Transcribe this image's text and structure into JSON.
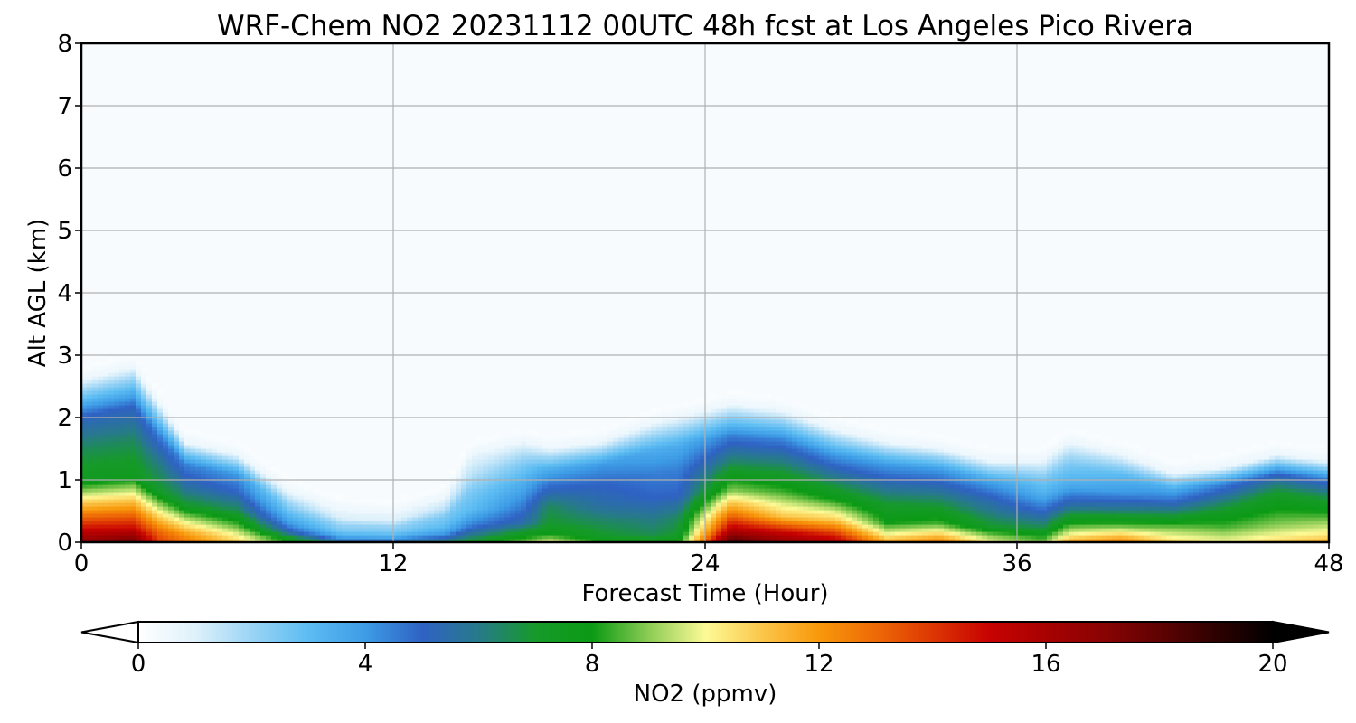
{
  "chart_data": {
    "type": "heatmap",
    "title": "WRF-Chem NO2  20231112 00UTC 48h fcst at Los Angeles Pico Rivera",
    "xlabel": "Forecast Time (Hour)",
    "ylabel": "Alt AGL (km)",
    "xlim": [
      0,
      48
    ],
    "ylim": [
      0,
      8
    ],
    "x_ticks": [
      0,
      12,
      24,
      36,
      48
    ],
    "y_ticks": [
      0,
      1,
      2,
      3,
      4,
      5,
      6,
      7,
      8
    ],
    "grid": true,
    "colorbar": {
      "label": "NO2  (ppmv)",
      "range": [
        0,
        20
      ],
      "ticks": [
        0,
        4,
        8,
        12,
        16,
        20
      ],
      "extend": "both",
      "orientation": "horizontal",
      "stops": [
        {
          "v": 0,
          "c": "#ffffff"
        },
        {
          "v": 1,
          "c": "#dff1fb"
        },
        {
          "v": 2,
          "c": "#9ad4f5"
        },
        {
          "v": 3,
          "c": "#5cbcf2"
        },
        {
          "v": 4,
          "c": "#3d9ce6"
        },
        {
          "v": 5,
          "c": "#2f62c4"
        },
        {
          "v": 6,
          "c": "#277a8a"
        },
        {
          "v": 7,
          "c": "#169a2a"
        },
        {
          "v": 8,
          "c": "#0b9a14"
        },
        {
          "v": 9,
          "c": "#8ccc55"
        },
        {
          "v": 10,
          "c": "#fdfa96"
        },
        {
          "v": 11,
          "c": "#fbc64a"
        },
        {
          "v": 12,
          "c": "#f8980b"
        },
        {
          "v": 13,
          "c": "#ee6a06"
        },
        {
          "v": 14,
          "c": "#dd3603"
        },
        {
          "v": 15,
          "c": "#c80202"
        },
        {
          "v": 16,
          "c": "#a80101"
        },
        {
          "v": 17,
          "c": "#8a0303"
        },
        {
          "v": 18,
          "c": "#5f0202"
        },
        {
          "v": 19,
          "c": "#2e0101"
        },
        {
          "v": 20,
          "c": "#000000"
        }
      ]
    },
    "z_by_hour": [
      {
        "x": 0,
        "top_km": 2.6,
        "surface": 17,
        "l": [
          15,
          12,
          7.5,
          6.5,
          5
        ]
      },
      {
        "x": 2,
        "top_km": 2.8,
        "surface": 18,
        "l": [
          15,
          12,
          7.5,
          6.5,
          5
        ]
      },
      {
        "x": 3,
        "top_km": 2.2,
        "surface": 14,
        "l": [
          13,
          10.5,
          7,
          6,
          4.5
        ]
      },
      {
        "x": 4,
        "top_km": 1.6,
        "surface": 13,
        "l": [
          12,
          10,
          7,
          5.5,
          4.5
        ]
      },
      {
        "x": 6,
        "top_km": 1.4,
        "surface": 11,
        "l": [
          10,
          8.5,
          6.5,
          5,
          4
        ]
      },
      {
        "x": 8,
        "top_km": 0.8,
        "surface": 8,
        "l": [
          7.5,
          5.5,
          4,
          3,
          2
        ]
      },
      {
        "x": 10,
        "top_km": 0.5,
        "surface": 6,
        "l": [
          5,
          3.5,
          2.5,
          2,
          1
        ]
      },
      {
        "x": 12,
        "top_km": 0.45,
        "surface": 6,
        "l": [
          5,
          3.5,
          2.5,
          2,
          1
        ]
      },
      {
        "x": 14,
        "top_km": 0.7,
        "surface": 6.5,
        "l": [
          5.5,
          4,
          3,
          2.5,
          1.5
        ]
      },
      {
        "x": 15,
        "top_km": 1.4,
        "surface": 7.5,
        "l": [
          6,
          4.5,
          3,
          2.5,
          1.5
        ]
      },
      {
        "x": 17,
        "top_km": 1.6,
        "surface": 9,
        "l": [
          7.5,
          5.5,
          4.5,
          3.5,
          2.5
        ]
      },
      {
        "x": 18,
        "top_km": 1.5,
        "surface": 10.5,
        "l": [
          8,
          7,
          6.5,
          5,
          3.5
        ]
      },
      {
        "x": 20,
        "top_km": 1.6,
        "surface": 8,
        "l": [
          7,
          6.5,
          5.5,
          5,
          4
        ]
      },
      {
        "x": 22,
        "top_km": 1.9,
        "surface": 7.5,
        "l": [
          6.5,
          6,
          5,
          4.5,
          3.5
        ]
      },
      {
        "x": 23,
        "top_km": 2.0,
        "surface": 8,
        "l": [
          7,
          6.5,
          5,
          4.5,
          3.5
        ]
      },
      {
        "x": 25,
        "top_km": 2.2,
        "surface": 19,
        "l": [
          16,
          13,
          9,
          6.5,
          4.5
        ]
      },
      {
        "x": 27,
        "top_km": 2.1,
        "surface": 17,
        "l": [
          15,
          11,
          8.5,
          6.5,
          4.5
        ]
      },
      {
        "x": 29,
        "top_km": 1.8,
        "surface": 16,
        "l": [
          14,
          11,
          8,
          6,
          4
        ]
      },
      {
        "x": 31,
        "top_km": 1.6,
        "surface": 12,
        "l": [
          10,
          8,
          7,
          5.5,
          4
        ]
      },
      {
        "x": 33,
        "top_km": 1.5,
        "surface": 13,
        "l": [
          11,
          8.5,
          7,
          5.5,
          4
        ]
      },
      {
        "x": 35,
        "top_km": 1.3,
        "surface": 10,
        "l": [
          9,
          7,
          6,
          5,
          3.5
        ]
      },
      {
        "x": 37,
        "top_km": 1.3,
        "surface": 9,
        "l": [
          8,
          6.5,
          5,
          3.5,
          2.5
        ]
      },
      {
        "x": 38,
        "top_km": 1.6,
        "surface": 12,
        "l": [
          10,
          8,
          5.5,
          3.5,
          2.5
        ]
      },
      {
        "x": 40,
        "top_km": 1.4,
        "surface": 13,
        "l": [
          11,
          8.5,
          6,
          4,
          3
        ]
      },
      {
        "x": 42,
        "top_km": 1.1,
        "surface": 11,
        "l": [
          10,
          9,
          7,
          5,
          3.5
        ]
      },
      {
        "x": 44,
        "top_km": 1.2,
        "surface": 10,
        "l": [
          9.5,
          8.5,
          7.5,
          6,
          4.5
        ]
      },
      {
        "x": 46,
        "top_km": 1.4,
        "surface": 11,
        "l": [
          10,
          9,
          8,
          7,
          5
        ]
      },
      {
        "x": 48,
        "top_km": 1.3,
        "surface": 12,
        "l": [
          10.5,
          9.5,
          8,
          6.5,
          4.5
        ]
      }
    ],
    "level_fracs": [
      0.08,
      0.2,
      0.38,
      0.58,
      0.78
    ]
  }
}
